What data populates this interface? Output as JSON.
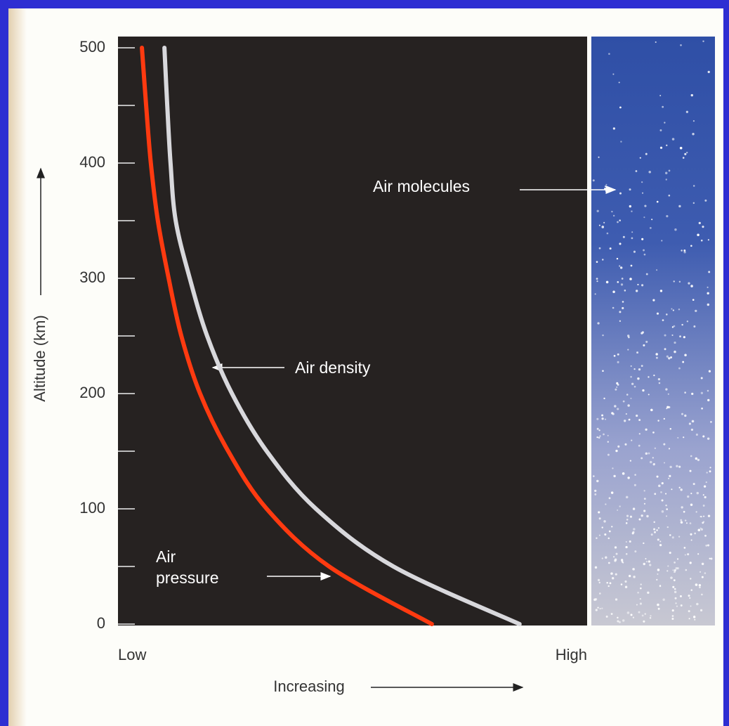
{
  "chart_data": {
    "type": "line",
    "y_label": "Altitude (km)",
    "x_label": "Increasing",
    "annotations": [
      "Air molecules"
    ],
    "ylim": [
      0,
      500
    ],
    "yticks": [
      0,
      100,
      200,
      300,
      400,
      500
    ],
    "minor_yticks": [
      50,
      150,
      250,
      350,
      450
    ],
    "xlim": [
      0,
      100
    ],
    "xticks": [
      {
        "value": 0,
        "label": "Low"
      },
      {
        "value": 100,
        "label": "High"
      }
    ],
    "series": [
      {
        "name": "Air pressure",
        "color": "#ff3a10",
        "x": [
          66.9,
          45,
          31.7,
          23.5,
          17.5,
          13.5,
          10.8,
          8.5,
          7,
          6,
          5.1
        ],
        "values": [
          0,
          50,
          100,
          150,
          200,
          250,
          300,
          350,
          400,
          450,
          500
        ]
      },
      {
        "name": "Air density",
        "color": "#d8d8dc",
        "x": [
          85.6,
          58.7,
          42.2,
          31.7,
          24.3,
          19,
          15.3,
          12.3,
          11.2,
          10.5,
          9.9
        ],
        "values": [
          0,
          50,
          100,
          150,
          200,
          250,
          300,
          350,
          400,
          450,
          500
        ]
      }
    ]
  }
}
